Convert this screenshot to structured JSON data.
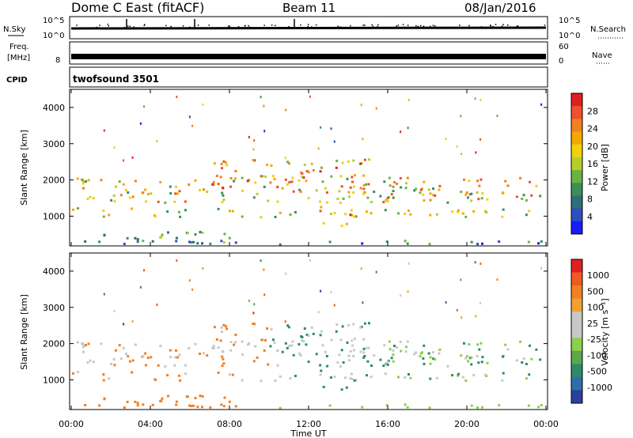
{
  "header": {
    "title": "Dome C East (fitACF)",
    "beam": "Beam 11",
    "date": "08/Jan/2016"
  },
  "top_panels": {
    "nsky_label": "N.Sky",
    "nsky_ticks": [
      "10^5",
      "10^0"
    ],
    "nsearch_label": "N.Search",
    "nsearch_ticks": [
      "10^5",
      "10^0"
    ],
    "freq_label_1": "Freq.",
    "freq_label_2": "[MHz]",
    "freq_ticks": [
      "8"
    ],
    "nave_label": "Nave",
    "nave_ticks": [
      "60",
      "0"
    ],
    "cpid_label": "CPID",
    "cpid_value": "twofsound 3501"
  },
  "chart_data": [
    {
      "type": "heatmap",
      "name": "power",
      "xlabel": "",
      "ylabel": "Slant Range [km]",
      "xlim": [
        0,
        24
      ],
      "ylim": [
        180,
        4500
      ],
      "y_ticks": [
        "1000",
        "2000",
        "3000",
        "4000"
      ],
      "colorbar": {
        "label": "Power [dB]",
        "ticks": [
          "28",
          "24",
          "20",
          "16",
          "12",
          "8",
          "4"
        ],
        "colors": [
          "#1a1aff",
          "#2b4fbf",
          "#2e6e7a",
          "#3a8f5a",
          "#6ab343",
          "#b6cd2f",
          "#f0d010",
          "#f5a800",
          "#f08020",
          "#ee5030",
          "#e02020"
        ]
      }
    },
    {
      "type": "heatmap",
      "name": "velocity",
      "xlabel": "Time UT",
      "ylabel": "Slant Range [km]",
      "xlim": [
        0,
        24
      ],
      "ylim": [
        180,
        4500
      ],
      "x_ticks": [
        "00:00",
        "04:00",
        "08:00",
        "12:00",
        "16:00",
        "20:00",
        "00:00"
      ],
      "y_ticks": [
        "1000",
        "2000",
        "3000",
        "4000"
      ],
      "colorbar": {
        "label": "Velocity [m s⁻¹]",
        "ticks": [
          "1000",
          "500",
          "100",
          "25",
          "-25",
          "-100",
          "-500",
          "-1000"
        ],
        "colors": [
          "#2a3fa0",
          "#2f6fa8",
          "#2e8a6a",
          "#5aa84a",
          "#8ad04a",
          "#c8c8c8",
          "#c8c8c8",
          "#f0a030",
          "#f08020",
          "#ee5a20",
          "#e02020"
        ]
      }
    }
  ]
}
